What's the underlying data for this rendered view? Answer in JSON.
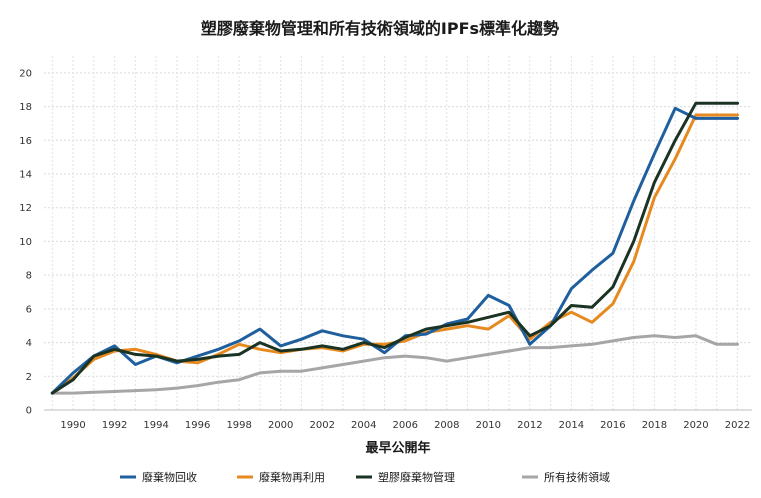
{
  "chart_data": {
    "type": "line",
    "title": "塑膠廢棄物管理和所有技術領域的IPFs標準化趨勢",
    "xlabel": "最早公開年",
    "ylabel": "",
    "x": [
      1989,
      1990,
      1991,
      1992,
      1993,
      1994,
      1995,
      1996,
      1997,
      1998,
      1999,
      2000,
      2001,
      2002,
      2003,
      2004,
      2005,
      2006,
      2007,
      2008,
      2009,
      2010,
      2011,
      2012,
      2013,
      2014,
      2015,
      2016,
      2017,
      2018,
      2019,
      2020,
      2021,
      2022
    ],
    "xlim": [
      1988.6,
      2022.7
    ],
    "ylim": [
      0,
      21
    ],
    "x_ticks": [
      1990,
      1992,
      1994,
      1996,
      1998,
      2000,
      2002,
      2004,
      2006,
      2008,
      2010,
      2012,
      2014,
      2016,
      2018,
      2020,
      2022
    ],
    "y_ticks": [
      0,
      2,
      4,
      6,
      8,
      10,
      12,
      14,
      16,
      18,
      20
    ],
    "grid": true,
    "legend_position": "bottom",
    "series": [
      {
        "name": "廢棄物回收",
        "color": "#1f5f9e",
        "values": [
          1.0,
          2.2,
          3.2,
          3.8,
          2.7,
          3.2,
          2.8,
          3.2,
          3.6,
          4.1,
          4.8,
          3.8,
          4.2,
          4.7,
          4.4,
          4.2,
          3.4,
          4.4,
          4.5,
          5.1,
          5.4,
          6.8,
          6.2,
          3.9,
          5.0,
          7.2,
          8.3,
          9.3,
          12.4,
          15.2,
          17.9,
          17.3,
          17.3,
          17.3
        ]
      },
      {
        "name": "廢棄物再利用",
        "color": "#e68a1f",
        "values": [
          1.0,
          1.9,
          3.0,
          3.5,
          3.6,
          3.3,
          2.9,
          2.8,
          3.3,
          3.9,
          3.6,
          3.4,
          3.6,
          3.7,
          3.5,
          3.9,
          3.9,
          4.1,
          4.6,
          4.8,
          5.0,
          4.8,
          5.6,
          4.2,
          5.2,
          5.8,
          5.2,
          6.3,
          8.8,
          12.6,
          14.9,
          17.5,
          17.5,
          17.5
        ]
      },
      {
        "name": "塑膠廢棄物管理",
        "color": "#1a3323",
        "values": [
          1.0,
          1.8,
          3.2,
          3.6,
          3.3,
          3.2,
          2.9,
          3.0,
          3.2,
          3.3,
          4.0,
          3.5,
          3.6,
          3.8,
          3.6,
          4.0,
          3.7,
          4.3,
          4.8,
          5.0,
          5.2,
          5.5,
          5.8,
          4.4,
          5.0,
          6.2,
          6.1,
          7.3,
          10.0,
          13.5,
          16.0,
          18.2,
          18.2,
          18.2
        ]
      },
      {
        "name": "所有技術領域",
        "color": "#a6a6a6",
        "values": [
          1.0,
          1.0,
          1.05,
          1.1,
          1.15,
          1.2,
          1.3,
          1.45,
          1.65,
          1.8,
          2.2,
          2.3,
          2.3,
          2.5,
          2.7,
          2.9,
          3.1,
          3.2,
          3.1,
          2.9,
          3.1,
          3.3,
          3.5,
          3.7,
          3.7,
          3.8,
          3.9,
          4.1,
          4.3,
          4.4,
          4.3,
          4.4,
          3.9,
          3.9
        ]
      }
    ]
  }
}
